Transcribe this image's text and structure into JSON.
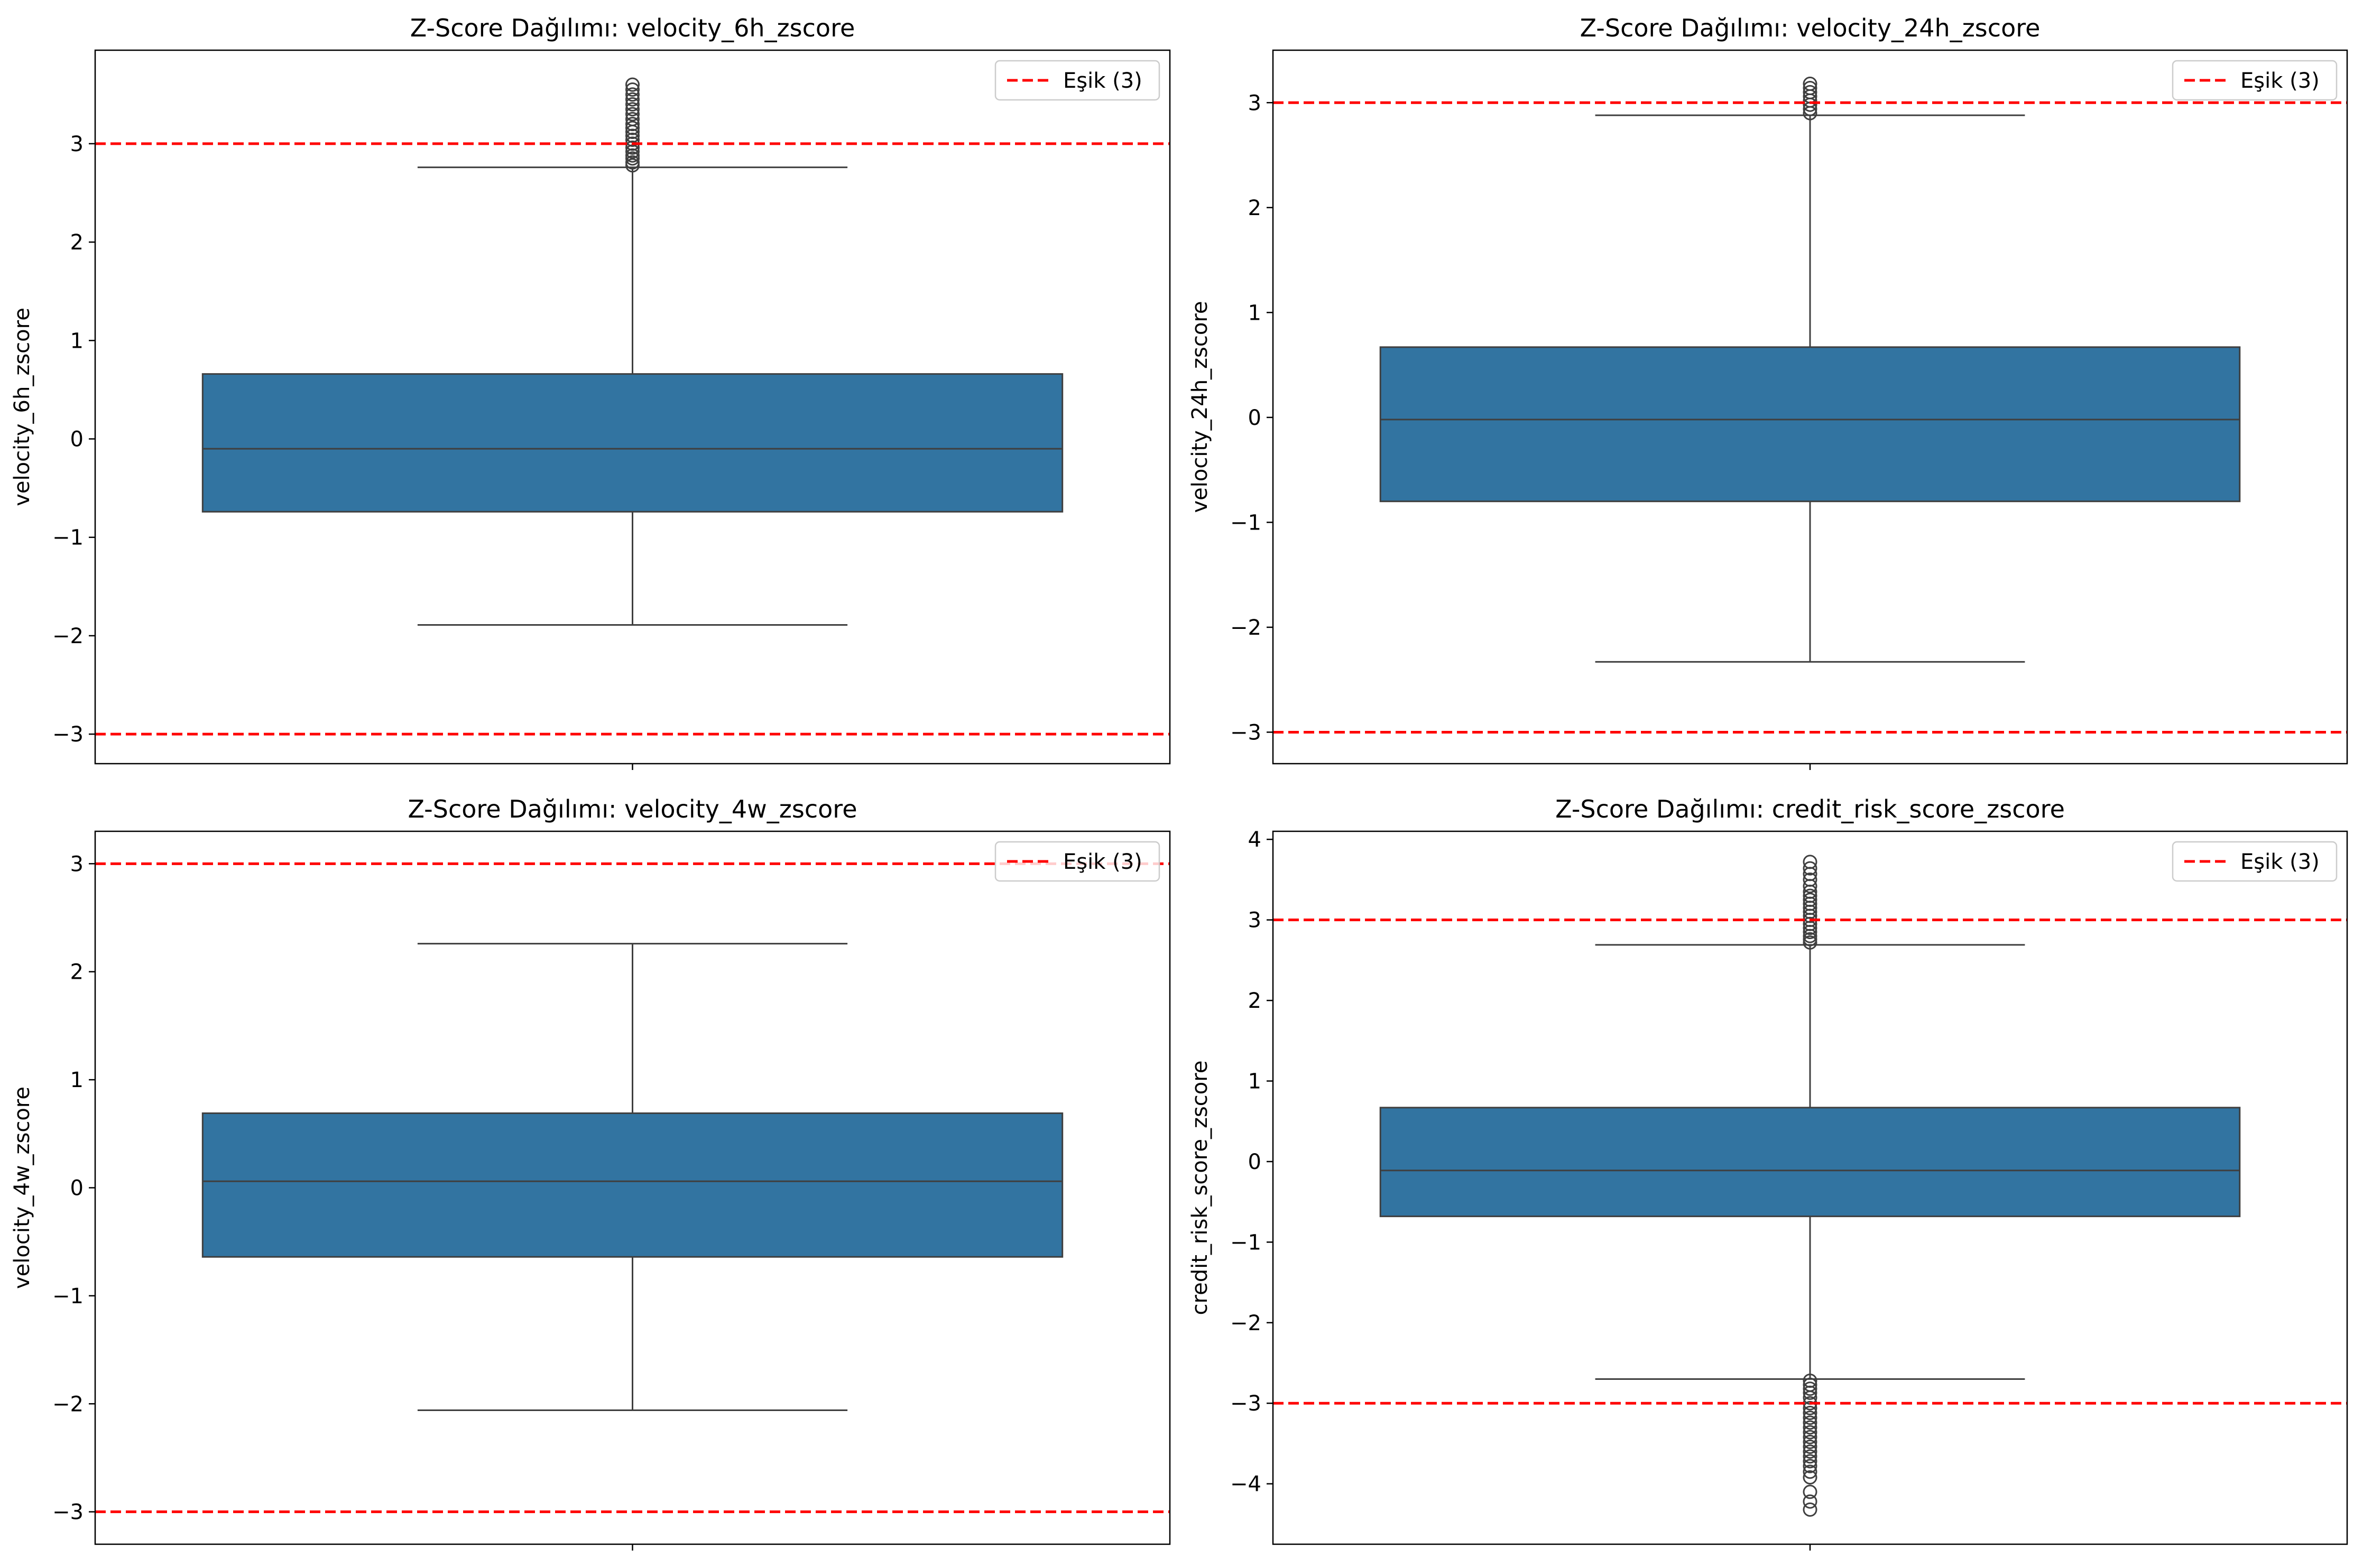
{
  "figure_colors": {
    "box_fill": "#3274a1",
    "box_edge": "#3f3f3f",
    "threshold_line": "#ff0000",
    "axis": "#000000"
  },
  "chart_data": [
    {
      "type": "box",
      "title": "Z-Score Dağılımı: velocity_6h_zscore",
      "xlabel": "",
      "ylabel": "velocity_6h_zscore",
      "ylim": [
        -3.3,
        3.95
      ],
      "yticks": [
        -3,
        -2,
        -1,
        0,
        1,
        2,
        3
      ],
      "ytick_labels": [
        "−3",
        "−2",
        "−1",
        "0",
        "1",
        "2",
        "3"
      ],
      "box": {
        "whislo": -1.89,
        "q1": -0.74,
        "med": -0.1,
        "q3": 0.66,
        "whishi": 2.76
      },
      "outliers": [
        2.78,
        2.81,
        2.85,
        2.88,
        2.92,
        2.96,
        3.0,
        3.04,
        3.08,
        3.12,
        3.16,
        3.2,
        3.25,
        3.3,
        3.35,
        3.4,
        3.45,
        3.5,
        3.55,
        3.6
      ],
      "thresholds": [
        3,
        -3
      ],
      "legend": {
        "label": "Eşik (3)",
        "location": "upper right"
      },
      "grid": false
    },
    {
      "type": "box",
      "title": "Z-Score Dağılımı: velocity_24h_zscore",
      "xlabel": "",
      "ylabel": "velocity_24h_zscore",
      "ylim": [
        -3.3,
        3.5
      ],
      "yticks": [
        -3,
        -2,
        -1,
        0,
        1,
        2,
        3
      ],
      "ytick_labels": [
        "−3",
        "−2",
        "−1",
        "0",
        "1",
        "2",
        "3"
      ],
      "box": {
        "whislo": -2.33,
        "q1": -0.8,
        "med": -0.02,
        "q3": 0.67,
        "whishi": 2.88
      },
      "outliers": [
        2.9,
        2.94,
        2.98,
        3.02,
        3.06,
        3.1,
        3.14,
        3.18
      ],
      "thresholds": [
        3,
        -3
      ],
      "legend": {
        "label": "Eşik (3)",
        "location": "upper right"
      },
      "grid": false
    },
    {
      "type": "box",
      "title": "Z-Score Dağılımı: velocity_4w_zscore",
      "xlabel": "",
      "ylabel": "velocity_4w_zscore",
      "ylim": [
        -3.3,
        3.3
      ],
      "yticks": [
        -3,
        -2,
        -1,
        0,
        1,
        2,
        3
      ],
      "ytick_labels": [
        "−3",
        "−2",
        "−1",
        "0",
        "1",
        "2",
        "3"
      ],
      "box": {
        "whislo": -2.06,
        "q1": -0.64,
        "med": 0.06,
        "q3": 0.69,
        "whishi": 2.26
      },
      "outliers": [],
      "thresholds": [
        3,
        -3
      ],
      "legend": {
        "label": "Eşik (3)",
        "location": "upper right"
      },
      "grid": false
    },
    {
      "type": "box",
      "title": "Z-Score Dağılımı: credit_risk_score_zscore",
      "xlabel": "",
      "ylabel": "credit_risk_score_zscore",
      "ylim": [
        -4.75,
        4.1
      ],
      "yticks": [
        -4,
        -3,
        -2,
        -1,
        0,
        1,
        2,
        3,
        4
      ],
      "ytick_labels": [
        "−4",
        "−3",
        "−2",
        "−1",
        "0",
        "1",
        "2",
        "3",
        "4"
      ],
      "box": {
        "whislo": -2.7,
        "q1": -0.68,
        "med": -0.11,
        "q3": 0.67,
        "whishi": 2.69
      },
      "outliers": [
        2.72,
        2.76,
        2.8,
        2.85,
        2.9,
        2.95,
        3.0,
        3.05,
        3.1,
        3.15,
        3.2,
        3.25,
        3.3,
        3.35,
        3.42,
        3.5,
        3.57,
        3.64,
        3.72,
        -2.72,
        -2.77,
        -2.82,
        -2.87,
        -2.93,
        -3.0,
        -3.06,
        -3.12,
        -3.18,
        -3.24,
        -3.3,
        -3.36,
        -3.42,
        -3.48,
        -3.54,
        -3.6,
        -3.66,
        -3.72,
        -3.78,
        -3.85,
        -3.92,
        -4.1,
        -4.22,
        -4.32
      ],
      "thresholds": [
        3,
        -3
      ],
      "legend": {
        "label": "Eşik (3)",
        "location": "upper right"
      },
      "grid": false
    }
  ]
}
